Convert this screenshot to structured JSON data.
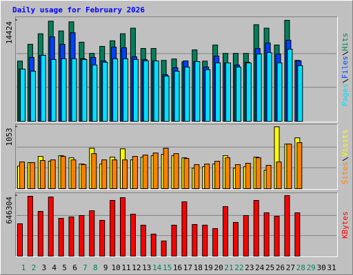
{
  "title": "Daily usage for February 2026",
  "chart_data": [
    {
      "type": "bar",
      "series": [
        {
          "name": "Hits",
          "color": "#00805c",
          "values": [
            8600,
            11000,
            12500,
            14300,
            12900,
            14200,
            11300,
            9700,
            10700,
            11500,
            12500,
            13300,
            10400,
            10400,
            8700,
            8900,
            8500,
            10200,
            8600,
            10900,
            9700,
            9700,
            9700,
            13800,
            13300,
            10900,
            14424,
            8700,
            null,
            null,
            null
          ]
        },
        {
          "name": "Files",
          "color": "#0040ff",
          "values": [
            7460,
            9120,
            9420,
            12070,
            10990,
            12650,
            8930,
            9120,
            8630,
            10590,
            10500,
            9220,
            8830,
            8630,
            6670,
            7650,
            8630,
            8530,
            7750,
            9320,
            8340,
            8040,
            8440,
            10400,
            11180,
            9610,
            11580,
            8630,
            null,
            null,
            null
          ]
        },
        {
          "name": "Pages",
          "color": "#00e0ff",
          "values": [
            7460,
            7160,
            9420,
            8830,
            8930,
            8930,
            8830,
            8040,
            8440,
            8930,
            8930,
            8830,
            8630,
            8630,
            6470,
            7160,
            7750,
            8530,
            7360,
            8340,
            8340,
            7750,
            8340,
            9610,
            9810,
            8340,
            10300,
            7950,
            null,
            null,
            null
          ]
        }
      ],
      "ylim": [
        0,
        14424
      ],
      "yticks": [
        14424
      ]
    },
    {
      "type": "bar",
      "series": [
        {
          "name": "Visits",
          "color": "#ffff00",
          "values": [
            386,
            445,
            550,
            468,
            562,
            527,
            421,
            690,
            421,
            538,
            679,
            491,
            538,
            562,
            585,
            562,
            527,
            351,
            374,
            421,
            562,
            351,
            374,
            538,
            316,
            1053,
            761,
            866,
            null,
            null,
            null
          ]
        },
        {
          "name": "Sites",
          "color": "#ff8000",
          "values": [
            456,
            445,
            480,
            491,
            550,
            491,
            410,
            597,
            491,
            491,
            491,
            550,
            573,
            608,
            690,
            597,
            515,
            410,
            421,
            468,
            527,
            410,
            433,
            527,
            398,
            456,
            761,
            784,
            null,
            null,
            null
          ]
        }
      ],
      "ylim": [
        0,
        1053
      ],
      "yticks": [
        1053
      ]
    },
    {
      "type": "bar",
      "series": [
        {
          "name": "KBytes",
          "color": "#ff0000",
          "values": [
            345200,
            639000,
            477400,
            631600,
            403900,
            418600,
            433300,
            484700,
            381900,
            594900,
            624200,
            448000,
            330500,
            235000,
            161600,
            330500,
            580200,
            337800,
            330500,
            293800,
            528800,
            359900,
            433300,
            594900,
            462700,
            426000,
            646304,
            462700,
            null,
            null,
            null
          ]
        }
      ],
      "ylim": [
        0,
        646304
      ],
      "yticks": [
        646304
      ],
      "categories": [
        1,
        2,
        3,
        4,
        5,
        6,
        7,
        8,
        9,
        10,
        11,
        12,
        13,
        14,
        15,
        16,
        17,
        18,
        19,
        20,
        21,
        22,
        23,
        24,
        25,
        26,
        27,
        28,
        29,
        30,
        31
      ],
      "category_colors": [
        "#00805c",
        "#00805c",
        "#000000",
        "#000000",
        "#000000",
        "#000000",
        "#00805c",
        "#00805c",
        "#000000",
        "#000000",
        "#000000",
        "#000000",
        "#000000",
        "#00805c",
        "#00805c",
        "#000000",
        "#000000",
        "#000000",
        "#000000",
        "#000000",
        "#00805c",
        "#00805c",
        "#000000",
        "#000000",
        "#000000",
        "#000000",
        "#000000",
        "#00805c",
        "#00805c",
        "#000000",
        "#000000"
      ]
    }
  ]
}
